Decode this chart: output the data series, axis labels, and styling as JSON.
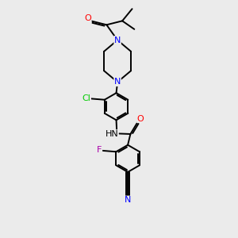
{
  "bg_color": "#EBEBEB",
  "bond_color": "#000000",
  "N_color": "#0000FF",
  "O_color": "#FF0000",
  "Cl_color": "#00CC00",
  "F_color": "#AA00AA",
  "bond_width": 1.4,
  "fig_width": 3.0,
  "fig_height": 3.0,
  "dpi": 100,
  "xlim": [
    -1.6,
    2.0
  ],
  "ylim": [
    -4.5,
    3.2
  ]
}
